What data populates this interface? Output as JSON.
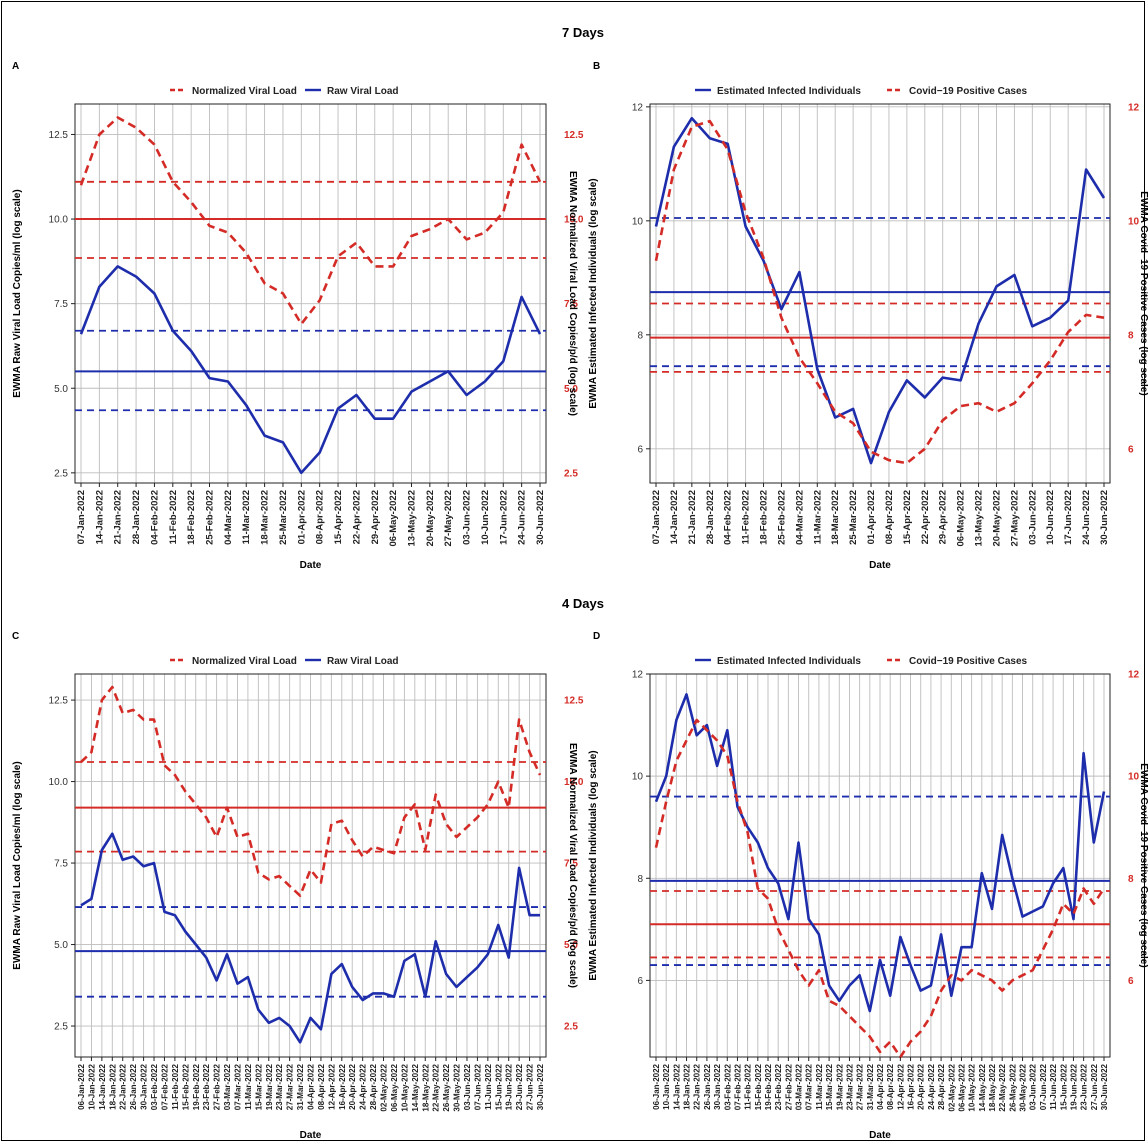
{
  "figure": {
    "section_titles": [
      "7 Days",
      "4 Days"
    ],
    "colors": {
      "red": "#d42b26",
      "blue": "#1d2dab",
      "grid": "#bdbdbd"
    }
  },
  "chart_data": [
    {
      "panel": "A",
      "type": "line",
      "legend": [
        "Normalized Viral Load",
        "Raw Viral Load"
      ],
      "legend_placement": "top",
      "xlabel": "Date",
      "ylabel_left": "EWMA Raw Viral Load Copies/ml (log scale)",
      "ylabel_right": "EWMA Normalized Viral Load Copies/p/d (log scale)",
      "ylim": [
        2.2,
        13.4
      ],
      "yticks": [
        "2.5",
        "5.0",
        "7.5",
        "10.0",
        "12.5"
      ],
      "ytick_values": [
        2.5,
        5.0,
        7.5,
        10.0,
        12.5
      ],
      "yticks_right": [
        "2.5",
        "5.0",
        "7.5",
        "10.0",
        "12.5"
      ],
      "ytick_right_values": [
        2.5,
        5.0,
        7.5,
        10.0,
        12.5
      ],
      "x": [
        "07-Jan-2022",
        "14-Jan-2022",
        "21-Jan-2022",
        "28-Jan-2022",
        "04-Feb-2022",
        "11-Feb-2022",
        "18-Feb-2022",
        "25-Feb-2022",
        "04-Mar-2022",
        "11-Mar-2022",
        "18-Mar-2022",
        "25-Mar-2022",
        "01-Apr-2022",
        "08-Apr-2022",
        "15-Apr-2022",
        "22-Apr-2022",
        "29-Apr-2022",
        "06-May-2022",
        "13-May-2022",
        "20-May-2022",
        "27-May-2022",
        "03-Jun-2022",
        "10-Jun-2022",
        "17-Jun-2022",
        "24-Jun-2022",
        "30-Jun-2022"
      ],
      "series": [
        {
          "name": "Normalized Viral Load",
          "color": "#d42b26",
          "style": "dashed",
          "axis": "right",
          "values": [
            11.0,
            12.5,
            13.0,
            12.7,
            12.2,
            11.1,
            10.5,
            9.8,
            9.6,
            9.0,
            8.1,
            7.8,
            6.9,
            7.6,
            8.9,
            9.3,
            8.6,
            8.6,
            9.5,
            9.7,
            10.0,
            9.4,
            9.6,
            10.2,
            12.2,
            11.1
          ]
        },
        {
          "name": "Raw Viral Load",
          "color": "#1d2dab",
          "style": "solid",
          "axis": "left",
          "values": [
            6.6,
            8.0,
            8.6,
            8.3,
            7.8,
            6.7,
            6.1,
            5.3,
            5.2,
            4.5,
            3.6,
            3.4,
            2.5,
            3.1,
            4.4,
            4.8,
            4.1,
            4.1,
            4.9,
            5.2,
            5.5,
            4.8,
            5.2,
            5.8,
            7.7,
            6.6
          ]
        }
      ],
      "hlines": [
        {
          "value": 10.0,
          "color": "#d42b26",
          "style": "solid"
        },
        {
          "value": 11.1,
          "color": "#d42b26",
          "style": "dashed"
        },
        {
          "value": 8.85,
          "color": "#d42b26",
          "style": "dashed"
        },
        {
          "value": 5.5,
          "color": "#1d2dab",
          "style": "solid"
        },
        {
          "value": 6.7,
          "color": "#1d2dab",
          "style": "dashed"
        },
        {
          "value": 4.35,
          "color": "#1d2dab",
          "style": "dashed"
        }
      ]
    },
    {
      "panel": "B",
      "type": "line",
      "legend": [
        "Estimated Infected Individuals",
        "Covid−19 Positive Cases"
      ],
      "legend_placement": "top",
      "xlabel": "Date",
      "ylabel_left": "EWMA Estimated Infected Individuals (log scale)",
      "ylabel_right": "EWMA Covid−19 Positive Cases (log scale)",
      "ylim": [
        5.4,
        12.05
      ],
      "yticks": [
        "6",
        "8",
        "10",
        "12"
      ],
      "ytick_values": [
        6,
        8,
        10,
        12
      ],
      "yticks_right": [
        "6",
        "8",
        "10",
        "12"
      ],
      "ytick_right_values": [
        6,
        8,
        10,
        12
      ],
      "x": [
        "07-Jan-2022",
        "14-Jan-2022",
        "21-Jan-2022",
        "28-Jan-2022",
        "04-Feb-2022",
        "11-Feb-2022",
        "18-Feb-2022",
        "25-Feb-2022",
        "04-Mar-2022",
        "11-Mar-2022",
        "18-Mar-2022",
        "25-Mar-2022",
        "01-Apr-2022",
        "08-Apr-2022",
        "15-Apr-2022",
        "22-Apr-2022",
        "29-Apr-2022",
        "06-May-2022",
        "13-May-2022",
        "20-May-2022",
        "27-May-2022",
        "03-Jun-2022",
        "10-Jun-2022",
        "17-Jun-2022",
        "24-Jun-2022",
        "30-Jun-2022"
      ],
      "series": [
        {
          "name": "Estimated Infected Individuals",
          "color": "#1d2dab",
          "style": "solid",
          "axis": "left",
          "values": [
            9.9,
            11.3,
            11.8,
            11.45,
            11.35,
            9.9,
            9.3,
            8.45,
            9.1,
            7.4,
            6.55,
            6.7,
            5.75,
            6.65,
            7.2,
            6.9,
            7.25,
            7.2,
            8.2,
            8.85,
            9.05,
            8.15,
            8.3,
            8.6,
            10.9,
            10.4
          ]
        },
        {
          "name": "Covid−19 Positive Cases",
          "color": "#d42b26",
          "style": "dashed",
          "axis": "right",
          "values": [
            9.3,
            10.9,
            11.65,
            11.75,
            11.25,
            10.15,
            9.35,
            8.3,
            7.6,
            7.15,
            6.65,
            6.45,
            5.95,
            5.8,
            5.75,
            6.0,
            6.5,
            6.75,
            6.8,
            6.65,
            6.8,
            7.15,
            7.55,
            8.05,
            8.35,
            8.3
          ]
        }
      ],
      "hlines": [
        {
          "value": 8.75,
          "color": "#1d2dab",
          "style": "solid"
        },
        {
          "value": 10.05,
          "color": "#1d2dab",
          "style": "dashed"
        },
        {
          "value": 7.45,
          "color": "#1d2dab",
          "style": "dashed"
        },
        {
          "value": 7.95,
          "color": "#d42b26",
          "style": "solid"
        },
        {
          "value": 8.55,
          "color": "#d42b26",
          "style": "dashed"
        },
        {
          "value": 7.35,
          "color": "#d42b26",
          "style": "dashed"
        }
      ]
    },
    {
      "panel": "C",
      "type": "line",
      "legend": [
        "Normalized Viral Load",
        "Raw Viral Load"
      ],
      "legend_placement": "top",
      "xlabel": "Date",
      "ylabel_left": "EWMA Raw Viral Load Copies/ml (log scale)",
      "ylabel_right": "EWMA Normalized Viral Load Copies/p/d (log scale)",
      "ylim": [
        1.55,
        13.3
      ],
      "yticks": [
        "2.5",
        "5.0",
        "7.5",
        "10.0",
        "12.5"
      ],
      "ytick_values": [
        2.5,
        5.0,
        7.5,
        10.0,
        12.5
      ],
      "yticks_right": [
        "2.5",
        "5.0",
        "7.5",
        "10.0",
        "12.5"
      ],
      "ytick_right_values": [
        2.5,
        5.0,
        7.5,
        10.0,
        12.5
      ],
      "x": [
        "06-Jan-2022",
        "10-Jan-2022",
        "14-Jan-2022",
        "18-Jan-2022",
        "22-Jan-2022",
        "26-Jan-2022",
        "30-Jan-2022",
        "03-Feb-2022",
        "07-Feb-2022",
        "11-Feb-2022",
        "15-Feb-2022",
        "19-Feb-2022",
        "23-Feb-2022",
        "27-Feb-2022",
        "03-Mar-2022",
        "07-Mar-2022",
        "11-Mar-2022",
        "15-Mar-2022",
        "19-Mar-2022",
        "23-Mar-2022",
        "27-Mar-2022",
        "31-Mar-2022",
        "04-Apr-2022",
        "08-Apr-2022",
        "12-Apr-2022",
        "16-Apr-2022",
        "20-Apr-2022",
        "24-Apr-2022",
        "28-Apr-2022",
        "02-May-2022",
        "06-May-2022",
        "10-May-2022",
        "14-May-2022",
        "18-May-2022",
        "22-May-2022",
        "26-May-2022",
        "30-May-2022",
        "03-Jun-2022",
        "07-Jun-2022",
        "11-Jun-2022",
        "15-Jun-2022",
        "19-Jun-2022",
        "23-Jun-2022",
        "27-Jun-2022",
        "30-Jun-2022"
      ],
      "series": [
        {
          "name": "Normalized Viral Load",
          "color": "#d42b26",
          "style": "dashed",
          "axis": "right",
          "values": [
            10.6,
            10.9,
            12.5,
            12.9,
            12.1,
            12.2,
            11.9,
            11.9,
            10.5,
            10.2,
            9.7,
            9.3,
            8.9,
            8.3,
            9.2,
            8.3,
            8.4,
            7.2,
            7.0,
            7.1,
            6.8,
            6.5,
            7.3,
            6.9,
            8.7,
            8.8,
            8.2,
            7.7,
            8.0,
            7.9,
            7.8,
            8.9,
            9.3,
            7.9,
            9.6,
            8.7,
            8.3,
            8.6,
            8.9,
            9.3,
            10.0,
            9.2,
            11.9,
            10.9,
            10.2
          ]
        },
        {
          "name": "Raw Viral Load",
          "color": "#1d2dab",
          "style": "solid",
          "axis": "left",
          "values": [
            6.2,
            6.4,
            7.9,
            8.4,
            7.6,
            7.7,
            7.4,
            7.5,
            6.0,
            5.9,
            5.4,
            5.0,
            4.6,
            3.9,
            4.7,
            3.8,
            4.0,
            3.0,
            2.6,
            2.75,
            2.5,
            2.0,
            2.75,
            2.4,
            4.1,
            4.4,
            3.7,
            3.3,
            3.5,
            3.5,
            3.4,
            4.5,
            4.7,
            3.4,
            5.1,
            4.1,
            3.7,
            4.0,
            4.3,
            4.7,
            5.6,
            4.6,
            7.35,
            5.9,
            5.9
          ]
        }
      ],
      "hlines": [
        {
          "value": 9.2,
          "color": "#d42b26",
          "style": "solid"
        },
        {
          "value": 10.6,
          "color": "#d42b26",
          "style": "dashed"
        },
        {
          "value": 7.85,
          "color": "#d42b26",
          "style": "dashed"
        },
        {
          "value": 4.8,
          "color": "#1d2dab",
          "style": "solid"
        },
        {
          "value": 6.15,
          "color": "#1d2dab",
          "style": "dashed"
        },
        {
          "value": 3.4,
          "color": "#1d2dab",
          "style": "dashed"
        }
      ]
    },
    {
      "panel": "D",
      "type": "line",
      "legend": [
        "Estimated Infected Individuals",
        "Covid−19 Positive Cases"
      ],
      "legend_placement": "top",
      "xlabel": "Date",
      "ylabel_left": "EWMA Estimated Infected Individuals (log scale)",
      "ylabel_right": "EWMA Covid−19 Positive Cases (log scale)",
      "ylim": [
        4.5,
        12.0
      ],
      "yticks": [
        "6",
        "8",
        "10",
        "12"
      ],
      "ytick_values": [
        6,
        8,
        10,
        12
      ],
      "yticks_right": [
        "6",
        "8",
        "10",
        "12"
      ],
      "ytick_right_values": [
        6,
        8,
        10,
        12
      ],
      "x": [
        "06-Jan-2022",
        "10-Jan-2022",
        "14-Jan-2022",
        "18-Jan-2022",
        "22-Jan-2022",
        "26-Jan-2022",
        "30-Jan-2022",
        "03-Feb-2022",
        "07-Feb-2022",
        "11-Feb-2022",
        "15-Feb-2022",
        "19-Feb-2022",
        "23-Feb-2022",
        "27-Feb-2022",
        "03-Mar-2022",
        "07-Mar-2022",
        "11-Mar-2022",
        "15-Mar-2022",
        "19-Mar-2022",
        "23-Mar-2022",
        "27-Mar-2022",
        "31-Mar-2022",
        "04-Apr-2022",
        "08-Apr-2022",
        "12-Apr-2022",
        "16-Apr-2022",
        "20-Apr-2022",
        "24-Apr-2022",
        "28-Apr-2022",
        "02-May-2022",
        "06-May-2022",
        "10-May-2022",
        "14-May-2022",
        "18-May-2022",
        "22-May-2022",
        "26-May-2022",
        "30-May-2022",
        "03-Jun-2022",
        "07-Jun-2022",
        "11-Jun-2022",
        "15-Jun-2022",
        "19-Jun-2022",
        "23-Jun-2022",
        "27-Jun-2022",
        "30-Jun-2022"
      ],
      "series": [
        {
          "name": "Estimated Infected Individuals",
          "color": "#1d2dab",
          "style": "solid",
          "axis": "left",
          "values": [
            9.5,
            10.0,
            11.1,
            11.6,
            10.8,
            11.0,
            10.2,
            10.9,
            9.4,
            9.0,
            8.7,
            8.2,
            7.9,
            7.2,
            8.7,
            7.2,
            6.9,
            5.9,
            5.6,
            5.9,
            6.1,
            5.4,
            6.4,
            5.7,
            6.85,
            6.3,
            5.8,
            5.9,
            6.9,
            5.7,
            6.65,
            6.65,
            8.1,
            7.4,
            8.85,
            8.0,
            7.25,
            7.35,
            7.45,
            7.9,
            8.2,
            7.2,
            10.45,
            8.7,
            9.7
          ]
        },
        {
          "name": "Covid−19 Positive Cases",
          "color": "#d42b26",
          "style": "dashed",
          "axis": "right",
          "values": [
            8.6,
            9.5,
            10.3,
            10.7,
            11.1,
            10.9,
            10.7,
            10.4,
            9.5,
            8.9,
            7.8,
            7.6,
            7.0,
            6.6,
            6.2,
            5.9,
            6.2,
            5.6,
            5.5,
            5.3,
            5.1,
            4.9,
            4.6,
            4.8,
            4.5,
            4.8,
            5.0,
            5.3,
            5.8,
            6.1,
            6.0,
            6.2,
            6.1,
            6.0,
            5.8,
            6.0,
            6.1,
            6.2,
            6.6,
            7.0,
            7.5,
            7.3,
            7.8,
            7.5,
            7.8
          ]
        }
      ],
      "hlines": [
        {
          "value": 7.95,
          "color": "#1d2dab",
          "style": "solid"
        },
        {
          "value": 9.6,
          "color": "#1d2dab",
          "style": "dashed"
        },
        {
          "value": 6.3,
          "color": "#1d2dab",
          "style": "dashed"
        },
        {
          "value": 7.1,
          "color": "#d42b26",
          "style": "solid"
        },
        {
          "value": 7.75,
          "color": "#d42b26",
          "style": "dashed"
        },
        {
          "value": 6.45,
          "color": "#d42b26",
          "style": "dashed"
        }
      ]
    }
  ]
}
